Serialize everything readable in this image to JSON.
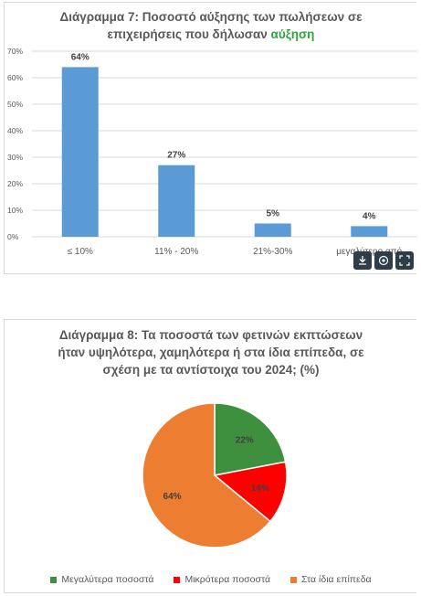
{
  "chart_data": [
    {
      "type": "bar",
      "title": "Διάγραμμα 7: Ποσοστό αύξησης των πωλήσεων σε επιχειρήσεις που δήλωσαν",
      "title_accent": "αύξηση",
      "categories": [
        "≤ 10%",
        "11% - 20%",
        "21%-30%",
        "μεγαλύτερο από"
      ],
      "values": [
        64,
        27,
        5,
        4
      ],
      "data_labels": [
        "64%",
        "27%",
        "5%",
        "4%"
      ],
      "ylim": [
        0,
        70
      ],
      "yticks": [
        "0%",
        "10%",
        "20%",
        "30%",
        "40%",
        "50%",
        "60%",
        "70%"
      ],
      "grid": true,
      "color": "#5b9bd5"
    },
    {
      "type": "pie",
      "title": "Διάγραμμα 8: Τα ποσοστά των φετινών εκπτώσεων ήταν υψηλότερα, χαμηλότερα ή στα ίδια επίπεδα, σε σχέση με τα αντίστοιχα του 2024; (%)",
      "labels": [
        "Μεγαλύτερα ποσοστά",
        "Μικρότερα ποσοστά",
        "Στα ίδια επίπεδα"
      ],
      "values": [
        22,
        14,
        64
      ],
      "data_labels": [
        "22%",
        "14%",
        "64%"
      ],
      "colors": [
        "#3e8f3e",
        "#ff0000",
        "#ed7d31"
      ],
      "legend": "bottom"
    }
  ],
  "title1_line1": "Διάγραμμα 7: Ποσοστό αύξησης των πωλήσεων σε",
  "title1_line2": "επιχειρήσεις που δήλωσαν ",
  "title1_accent": "αύξηση",
  "title2_line1": "Διάγραμμα 8: Τα ποσοστά των φετινών εκπτώσεων",
  "title2_line2": "ήταν υψηλότερα, χαμηλότερα ή στα ίδια επίπεδα, σε",
  "title2_line3": "σχέση με τα αντίστοιχα του 2024; (%)",
  "toolbar": {
    "icons": [
      "download-icon",
      "share-icon",
      "expand-icon"
    ]
  }
}
